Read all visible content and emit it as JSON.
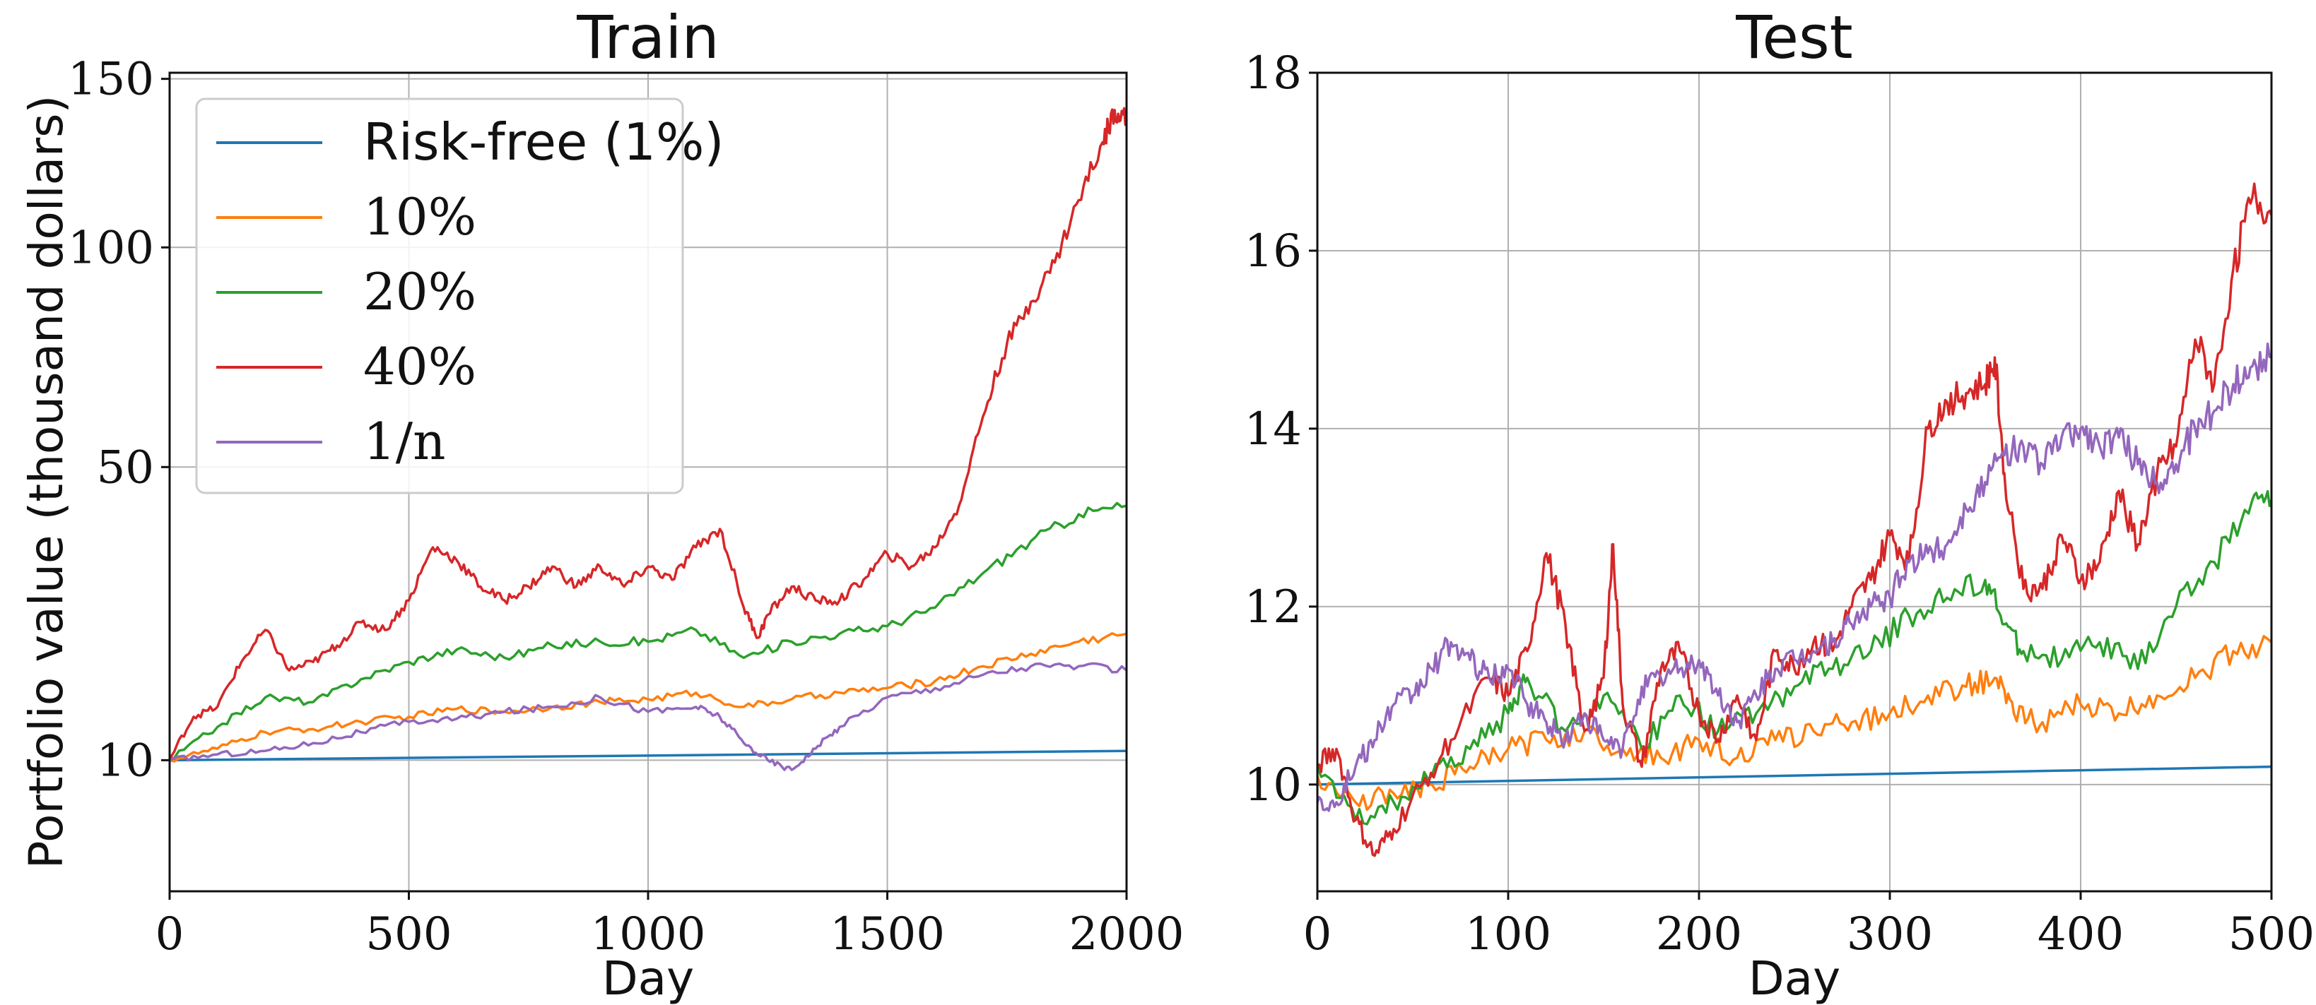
{
  "chart_data": [
    {
      "type": "line",
      "title": "Train",
      "xlabel": "Day",
      "ylabel": "Portfolio value (thousand dollars)",
      "xlim": [
        0,
        2000
      ],
      "ylim": [
        2,
        152
      ],
      "y_scale": "sqrt",
      "xticks": [
        0,
        500,
        1000,
        1500,
        2000
      ],
      "yticks": [
        10,
        50,
        100,
        150
      ],
      "grid": true,
      "legend": "top-left",
      "series": [
        {
          "name": "Risk-free (1%)",
          "color": "#1f77b4",
          "x": [
            0,
            2000
          ],
          "y": [
            10,
            10.8
          ]
        },
        {
          "name": "10%",
          "color": "#ff7f0e",
          "x": [
            0,
            100,
            200,
            300,
            400,
            500,
            600,
            700,
            800,
            900,
            1000,
            1100,
            1200,
            1300,
            1400,
            1500,
            1600,
            1700,
            1800,
            1900,
            2000
          ],
          "y": [
            10,
            11,
            12.5,
            12.8,
            13.5,
            14,
            14.8,
            14.5,
            15,
            15.5,
            15.8,
            16.5,
            15,
            15.8,
            16.5,
            17,
            17.8,
            19.5,
            21,
            22.5,
            23.5
          ]
        },
        {
          "name": "20%",
          "color": "#2ca02c",
          "x": [
            0,
            100,
            200,
            300,
            400,
            500,
            600,
            700,
            800,
            900,
            1000,
            1100,
            1200,
            1300,
            1400,
            1500,
            1600,
            1700,
            1800,
            1900,
            2000
          ],
          "y": [
            10,
            13,
            16,
            15.5,
            18,
            20,
            21.5,
            20.5,
            22,
            22.5,
            22.5,
            24,
            20.5,
            22.5,
            23.5,
            24.5,
            27,
            32,
            37,
            41.5,
            43
          ]
        },
        {
          "name": "40%",
          "color": "#d62728",
          "x": [
            0,
            50,
            100,
            150,
            200,
            250,
            300,
            350,
            400,
            450,
            500,
            550,
            600,
            650,
            700,
            750,
            800,
            850,
            900,
            950,
            1000,
            1050,
            1100,
            1150,
            1200,
            1230,
            1250,
            1300,
            1350,
            1400,
            1450,
            1500,
            1550,
            1600,
            1650,
            1700,
            1750,
            1800,
            1850,
            1900,
            1950,
            1975,
            2000
          ],
          "y": [
            10,
            14,
            15,
            20,
            24,
            19,
            20,
            22,
            25,
            24,
            28,
            36,
            34,
            30,
            28,
            30,
            33,
            30,
            33,
            30,
            33,
            31,
            36,
            39,
            27,
            23,
            26,
            30,
            28,
            28,
            31,
            35,
            33,
            36,
            43,
            60,
            76,
            86,
            96,
            113,
            130,
            140,
            137
          ]
        },
        {
          "name": "1/n",
          "color": "#9467bd",
          "x": [
            0,
            100,
            200,
            300,
            400,
            500,
            600,
            700,
            800,
            900,
            1000,
            1100,
            1150,
            1200,
            1250,
            1300,
            1350,
            1400,
            1500,
            1600,
            1700,
            1800,
            1900,
            2000
          ],
          "y": [
            10,
            10.5,
            10.8,
            11.5,
            12.5,
            13.5,
            13.8,
            14.5,
            15,
            16,
            14.5,
            15,
            14,
            11.5,
            10,
            9.2,
            11,
            13,
            16,
            17,
            18.5,
            19.5,
            19.5,
            19
          ]
        }
      ]
    },
    {
      "type": "line",
      "title": "Test",
      "xlabel": "Day",
      "xlim": [
        0,
        500
      ],
      "ylim": [
        8.8,
        18
      ],
      "xticks": [
        0,
        100,
        200,
        300,
        400,
        500
      ],
      "yticks": [
        10,
        12,
        14,
        16,
        18
      ],
      "grid": true,
      "series": [
        {
          "name": "Risk-free (1%)",
          "color": "#1f77b4",
          "x": [
            0,
            500
          ],
          "y": [
            10,
            10.2
          ]
        },
        {
          "name": "10%",
          "color": "#ff7f0e",
          "x": [
            0,
            20,
            40,
            60,
            80,
            100,
            120,
            140,
            160,
            180,
            200,
            220,
            240,
            260,
            280,
            300,
            320,
            340,
            355,
            365,
            380,
            400,
            420,
            440,
            460,
            480,
            500
          ],
          "y": [
            10.1,
            9.8,
            9.9,
            10,
            10.2,
            10.4,
            10.5,
            10.6,
            10.4,
            10.3,
            10.5,
            10.3,
            10.5,
            10.6,
            10.7,
            10.8,
            11,
            11.1,
            11.2,
            10.8,
            10.7,
            10.9,
            10.8,
            11,
            11.2,
            11.5,
            11.6
          ]
        },
        {
          "name": "20%",
          "color": "#2ca02c",
          "x": [
            0,
            20,
            40,
            60,
            80,
            100,
            110,
            130,
            150,
            170,
            190,
            210,
            230,
            250,
            270,
            290,
            310,
            330,
            350,
            360,
            370,
            390,
            410,
            430,
            450,
            470,
            490,
            500
          ],
          "y": [
            10.2,
            9.6,
            9.8,
            10.1,
            10.4,
            10.8,
            11.2,
            10.6,
            11,
            10.4,
            11,
            10.6,
            10.8,
            11.1,
            11.3,
            11.5,
            11.9,
            12.1,
            12.3,
            11.8,
            11.5,
            11.4,
            11.6,
            11.3,
            12,
            12.5,
            13.2,
            13.2
          ]
        },
        {
          "name": "40%",
          "color": "#d62728",
          "x": [
            0,
            10,
            20,
            30,
            40,
            55,
            70,
            90,
            100,
            110,
            120,
            130,
            140,
            150,
            155,
            160,
            170,
            180,
            190,
            200,
            210,
            220,
            230,
            240,
            250,
            260,
            270,
            280,
            290,
            300,
            310,
            320,
            330,
            340,
            350,
            355,
            360,
            370,
            380,
            390,
            400,
            410,
            420,
            430,
            440,
            450,
            460,
            470,
            480,
            490,
            500
          ],
          "y": [
            10.2,
            10.4,
            9.6,
            9.2,
            9.5,
            10,
            10.5,
            11.2,
            11,
            11.5,
            12.6,
            11.8,
            10.6,
            11.2,
            12.7,
            10.9,
            10.2,
            11.3,
            11.5,
            10.8,
            10.5,
            11,
            10.5,
            11.5,
            11.3,
            11.6,
            11.5,
            12,
            12.3,
            12.8,
            12.5,
            14,
            14.3,
            14.4,
            14.5,
            14.8,
            13.5,
            12.2,
            12.2,
            12.8,
            12.3,
            12.5,
            13.3,
            12.7,
            13.5,
            13.8,
            15,
            14.5,
            15.8,
            16.6,
            16.4
          ]
        },
        {
          "name": "1/n",
          "color": "#9467bd",
          "x": [
            0,
            10,
            20,
            30,
            40,
            50,
            60,
            70,
            80,
            90,
            100,
            110,
            120,
            130,
            140,
            150,
            160,
            170,
            180,
            190,
            200,
            210,
            220,
            230,
            240,
            250,
            260,
            270,
            280,
            290,
            300,
            310,
            320,
            330,
            340,
            350,
            360,
            370,
            380,
            390,
            400,
            410,
            420,
            430,
            440,
            450,
            460,
            470,
            480,
            490,
            500
          ],
          "y": [
            9.8,
            9.8,
            10.2,
            10.5,
            10.9,
            11,
            11.3,
            11.6,
            11.4,
            11.2,
            11.3,
            10.9,
            10.7,
            10.5,
            10.8,
            10.5,
            10.4,
            11.1,
            11.2,
            11.3,
            11.4,
            11,
            10.7,
            11,
            11.3,
            11.4,
            11.5,
            11.6,
            11.8,
            12,
            12.1,
            12.5,
            12.6,
            12.7,
            13.1,
            13.4,
            13.7,
            13.8,
            13.6,
            13.9,
            14,
            13.8,
            13.9,
            13.6,
            13.4,
            13.6,
            14,
            14.2,
            14.5,
            14.7,
            14.8
          ]
        }
      ]
    }
  ]
}
